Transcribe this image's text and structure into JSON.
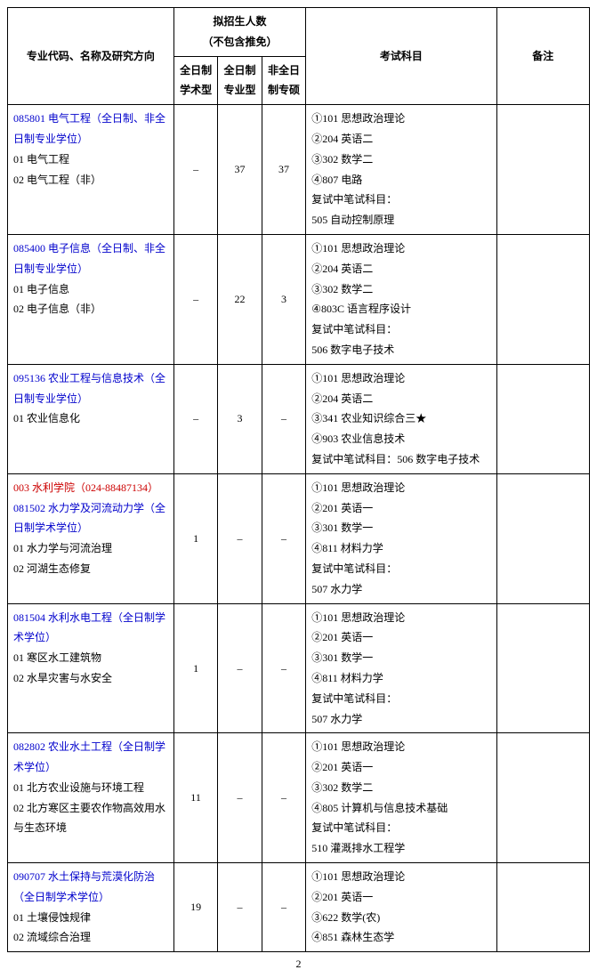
{
  "header": {
    "col_major": "专业代码、名称及研究方向",
    "col_enroll_group": "拟招生人数\n（不包含推免）",
    "col_n1": "全日制\n学术型",
    "col_n2": "全日制\n专业型",
    "col_n3": "非全日\n制专硕",
    "col_subjects": "考试科目",
    "col_remark": "备注"
  },
  "rows": [
    {
      "major_lines": [
        {
          "text": "085801 电气工程（全日制、非全日制专业学位）",
          "cls": "blue"
        },
        {
          "text": "01 电气工程",
          "cls": ""
        },
        {
          "text": "02 电气工程（非）",
          "cls": ""
        }
      ],
      "n1": "–",
      "n2": "37",
      "n3": "37",
      "subjects": [
        "①101 思想政治理论",
        "②204 英语二",
        "③302 数学二",
        "④807 电路",
        "复试中笔试科目：",
        "505 自动控制原理"
      ],
      "remark": ""
    },
    {
      "major_lines": [
        {
          "text": "085400 电子信息（全日制、非全日制专业学位）",
          "cls": "blue"
        },
        {
          "text": "01 电子信息",
          "cls": ""
        },
        {
          "text": "02 电子信息（非）",
          "cls": ""
        }
      ],
      "n1": "–",
      "n2": "22",
      "n3": "3",
      "subjects": [
        "①101 思想政治理论",
        "②204 英语二",
        "③302 数学二",
        "④803C 语言程序设计",
        "复试中笔试科目：",
        "506 数字电子技术"
      ],
      "remark": ""
    },
    {
      "major_lines": [
        {
          "text": "095136 农业工程与信息技术（全日制专业学位）",
          "cls": "blue"
        },
        {
          "text": "01 农业信息化",
          "cls": ""
        }
      ],
      "n1": "–",
      "n2": "3",
      "n3": "–",
      "subjects": [
        "①101 思想政治理论",
        "②204 英语二",
        "③341 农业知识综合三★",
        "④903 农业信息技术",
        "复试中笔试科目：506 数字电子技术"
      ],
      "remark": ""
    },
    {
      "major_lines": [
        {
          "text": "003 水利学院（024-88487134）",
          "cls": "red"
        },
        {
          "text": "081502 水力学及河流动力学（全日制学术学位）",
          "cls": "blue"
        },
        {
          "text": "01 水力学与河流治理",
          "cls": ""
        },
        {
          "text": "02 河湖生态修复",
          "cls": ""
        }
      ],
      "n1": "1",
      "n2": "–",
      "n3": "–",
      "subjects": [
        "①101 思想政治理论",
        "②201 英语一",
        "③301 数学一",
        "④811 材料力学",
        "复试中笔试科目：",
        "507 水力学"
      ],
      "remark": ""
    },
    {
      "major_lines": [
        {
          "text": "081504 水利水电工程（全日制学术学位）",
          "cls": "blue"
        },
        {
          "text": "01 寒区水工建筑物",
          "cls": ""
        },
        {
          "text": "02 水旱灾害与水安全",
          "cls": ""
        }
      ],
      "n1": "1",
      "n2": "–",
      "n3": "–",
      "subjects": [
        "①101 思想政治理论",
        "②201 英语一",
        "③301 数学一",
        "④811 材料力学",
        "复试中笔试科目：",
        "507 水力学"
      ],
      "remark": ""
    },
    {
      "major_lines": [
        {
          "text": "082802 农业水土工程（全日制学术学位）",
          "cls": "blue"
        },
        {
          "text": "01 北方农业设施与环境工程",
          "cls": ""
        },
        {
          "text": "02 北方寒区主要农作物高效用水与生态环境",
          "cls": ""
        }
      ],
      "n1": "11",
      "n2": "–",
      "n3": "–",
      "subjects": [
        "①101 思想政治理论",
        "②201 英语一",
        "③302 数学二",
        "④805 计算机与信息技术基础",
        "复试中笔试科目：",
        "510 灌溉排水工程学"
      ],
      "remark": ""
    },
    {
      "major_lines": [
        {
          "text": "090707 水土保持与荒漠化防治（全日制学术学位）",
          "cls": "blue"
        },
        {
          "text": "01 土壤侵蚀规律",
          "cls": ""
        },
        {
          "text": "02 流域综合治理",
          "cls": ""
        }
      ],
      "n1": "19",
      "n2": "–",
      "n3": "–",
      "subjects": [
        "①101 思想政治理论",
        "②201 英语一",
        "③622 数学(农)",
        "④851 森林生态学"
      ],
      "remark": ""
    }
  ],
  "page_number": "2"
}
